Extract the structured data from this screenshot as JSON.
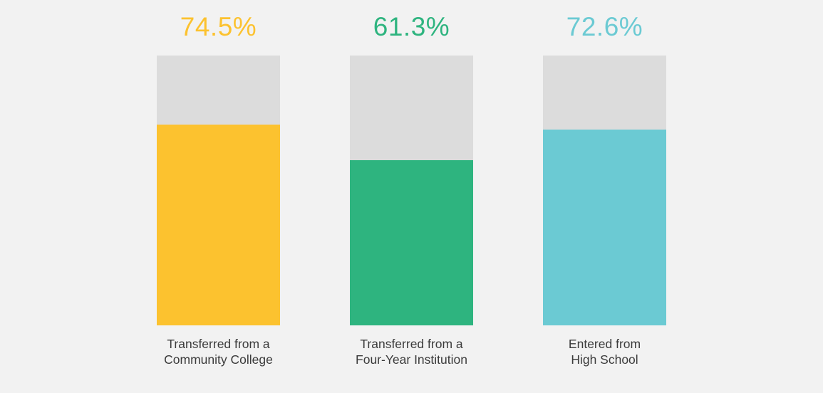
{
  "chart_data": {
    "type": "bar",
    "title": "",
    "unit": "%",
    "ylim": [
      0,
      100
    ],
    "grid": false,
    "legend": false,
    "track_color": "#DCDCDC",
    "background_color": "#F2F2F2",
    "categories": [
      "Transferred from a Community College",
      "Transferred from a Four-Year Institution",
      "Entered from High School"
    ],
    "values": [
      74.5,
      61.3,
      72.6
    ],
    "colors": [
      "#FCC22F",
      "#2EB47F",
      "#6BCAD3"
    ]
  },
  "bars": [
    {
      "value": 74.5,
      "value_label": "74.5%",
      "color": "#FCC22F",
      "label_line1": "Transferred from a",
      "label_line2": "Community College"
    },
    {
      "value": 61.3,
      "value_label": "61.3%",
      "color": "#2EB47F",
      "label_line1": "Transferred from a",
      "label_line2": "Four-Year Institution"
    },
    {
      "value": 72.6,
      "value_label": "72.6%",
      "color": "#6BCAD3",
      "label_line1": "Entered from",
      "label_line2": "High School"
    }
  ]
}
